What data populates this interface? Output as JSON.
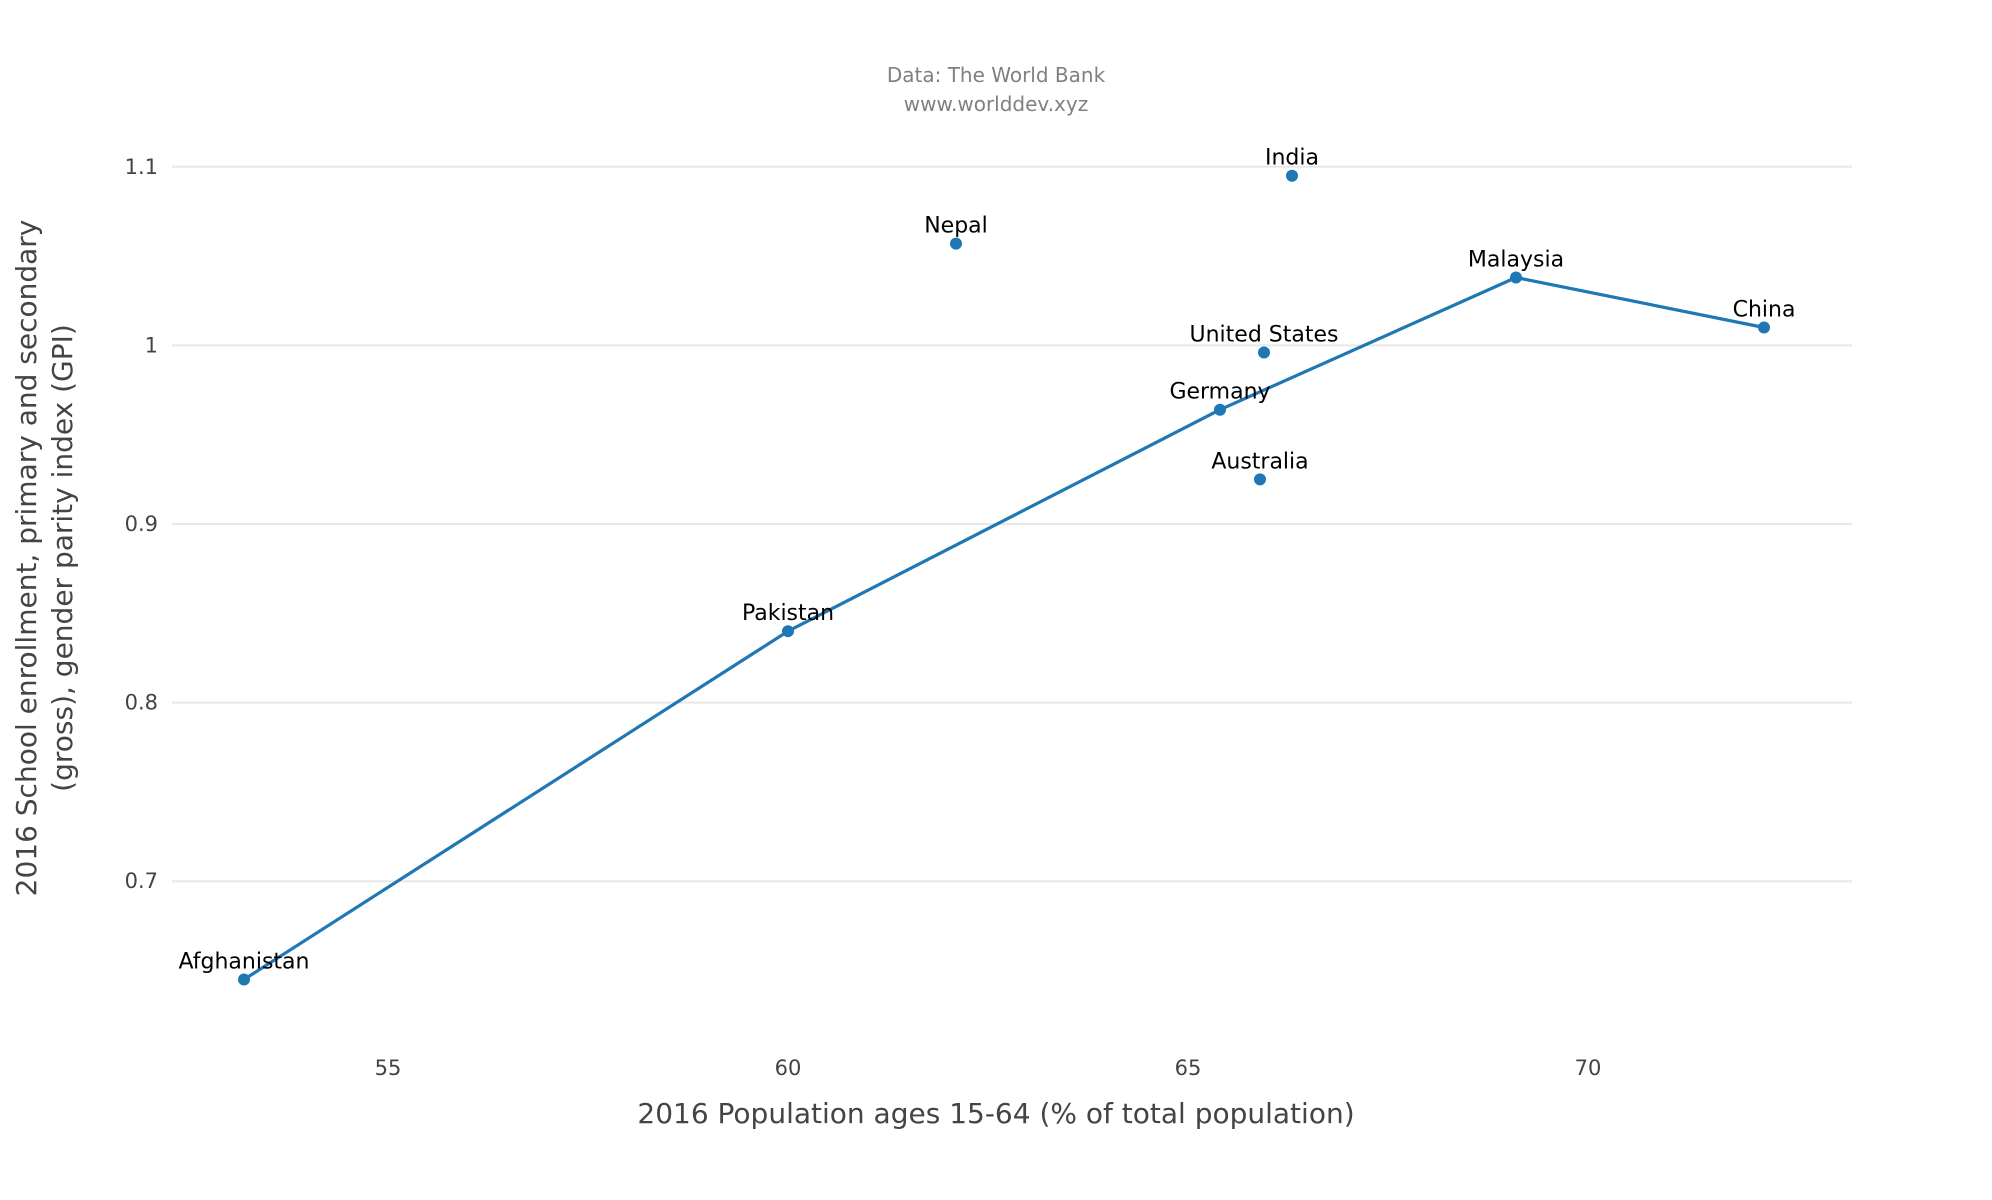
{
  "chart_data": {
    "type": "scatter",
    "source_line1": "Data: The World Bank",
    "source_line2": "www.worlddev.xyz",
    "xlabel": "2016 Population ages 15-64 (% of total population)",
    "ylabel_line1": "2016 School enrollment, primary and secondary",
    "ylabel_line2": "(gross), gender parity index (GPI)",
    "xlim": [
      52.3,
      73.3
    ],
    "ylim": [
      0.61,
      1.115
    ],
    "x_ticks": [
      {
        "value": 55,
        "label": "55"
      },
      {
        "value": 60,
        "label": "60"
      },
      {
        "value": 65,
        "label": "65"
      },
      {
        "value": 70,
        "label": "70"
      }
    ],
    "y_ticks": [
      {
        "value": 0.7,
        "label": "0.7"
      },
      {
        "value": 0.8,
        "label": "0.8"
      },
      {
        "value": 0.9,
        "label": "0.9"
      },
      {
        "value": 1.0,
        "label": "1"
      },
      {
        "value": 1.1,
        "label": "1.1"
      }
    ],
    "grid": "y",
    "marker_color": "#1f77b4",
    "line_color": "#1f77b4",
    "points": [
      {
        "label": "Afghanistan",
        "x": 53.2,
        "y": 0.645
      },
      {
        "label": "Pakistan",
        "x": 60.0,
        "y": 0.84
      },
      {
        "label": "Nepal",
        "x": 62.1,
        "y": 1.057
      },
      {
        "label": "Germany",
        "x": 65.4,
        "y": 0.964
      },
      {
        "label": "Australia",
        "x": 65.9,
        "y": 0.925
      },
      {
        "label": "United States",
        "x": 65.95,
        "y": 0.996
      },
      {
        "label": "India",
        "x": 66.3,
        "y": 1.095
      },
      {
        "label": "Malaysia",
        "x": 69.1,
        "y": 1.038
      },
      {
        "label": "China",
        "x": 72.2,
        "y": 1.01
      }
    ],
    "line_path": [
      "Afghanistan",
      "Pakistan",
      "Germany",
      "Malaysia",
      "China"
    ]
  }
}
